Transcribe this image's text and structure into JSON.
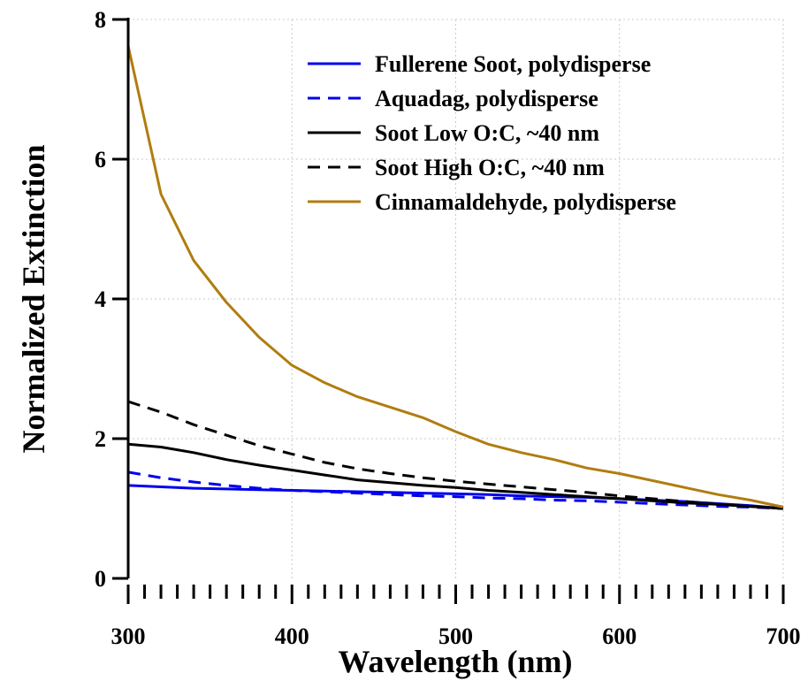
{
  "chart_data": {
    "type": "line",
    "xlabel": "Wavelength (nm)",
    "ylabel": "Normalized Extinction",
    "xlim": [
      300,
      700
    ],
    "ylim": [
      0,
      8
    ],
    "x_ticks": [
      300,
      400,
      500,
      600,
      700
    ],
    "y_ticks": [
      0,
      2,
      4,
      6,
      8
    ],
    "x_minor_step": 10,
    "grid": true,
    "legend_position": "top-right",
    "x": [
      300,
      320,
      340,
      360,
      380,
      400,
      420,
      440,
      460,
      480,
      500,
      520,
      540,
      560,
      580,
      600,
      620,
      640,
      660,
      680,
      700
    ],
    "series": [
      {
        "name": "Fullerene Soot, polydisperse",
        "color": "#0000ee",
        "dash": "solid",
        "values": [
          1.33,
          1.31,
          1.29,
          1.28,
          1.27,
          1.26,
          1.25,
          1.24,
          1.23,
          1.22,
          1.21,
          1.2,
          1.18,
          1.17,
          1.16,
          1.14,
          1.12,
          1.1,
          1.07,
          1.04,
          1.0
        ]
      },
      {
        "name": "Aquadag, polydisperse",
        "color": "#0000ee",
        "dash": "dashed",
        "values": [
          1.52,
          1.44,
          1.38,
          1.33,
          1.29,
          1.26,
          1.24,
          1.22,
          1.2,
          1.18,
          1.17,
          1.15,
          1.14,
          1.12,
          1.11,
          1.09,
          1.07,
          1.05,
          1.03,
          1.02,
          1.0
        ]
      },
      {
        "name": "Soot Low O:C, ~40 nm",
        "color": "#000000",
        "dash": "solid",
        "values": [
          1.92,
          1.88,
          1.8,
          1.7,
          1.62,
          1.55,
          1.48,
          1.41,
          1.37,
          1.33,
          1.3,
          1.26,
          1.23,
          1.2,
          1.17,
          1.14,
          1.11,
          1.08,
          1.06,
          1.03,
          1.0
        ]
      },
      {
        "name": "Soot High O:C, ~40 nm",
        "color": "#000000",
        "dash": "dashed",
        "values": [
          2.53,
          2.38,
          2.2,
          2.05,
          1.9,
          1.78,
          1.66,
          1.57,
          1.5,
          1.44,
          1.39,
          1.35,
          1.31,
          1.27,
          1.23,
          1.18,
          1.14,
          1.1,
          1.06,
          1.03,
          1.0
        ]
      },
      {
        "name": "Cinnamaldehyde, polydisperse",
        "color": "#b07d10",
        "dash": "solid",
        "values": [
          7.62,
          5.5,
          4.55,
          3.95,
          3.45,
          3.05,
          2.8,
          2.6,
          2.45,
          2.3,
          2.1,
          1.92,
          1.8,
          1.7,
          1.58,
          1.5,
          1.4,
          1.3,
          1.2,
          1.12,
          1.02
        ]
      }
    ]
  }
}
